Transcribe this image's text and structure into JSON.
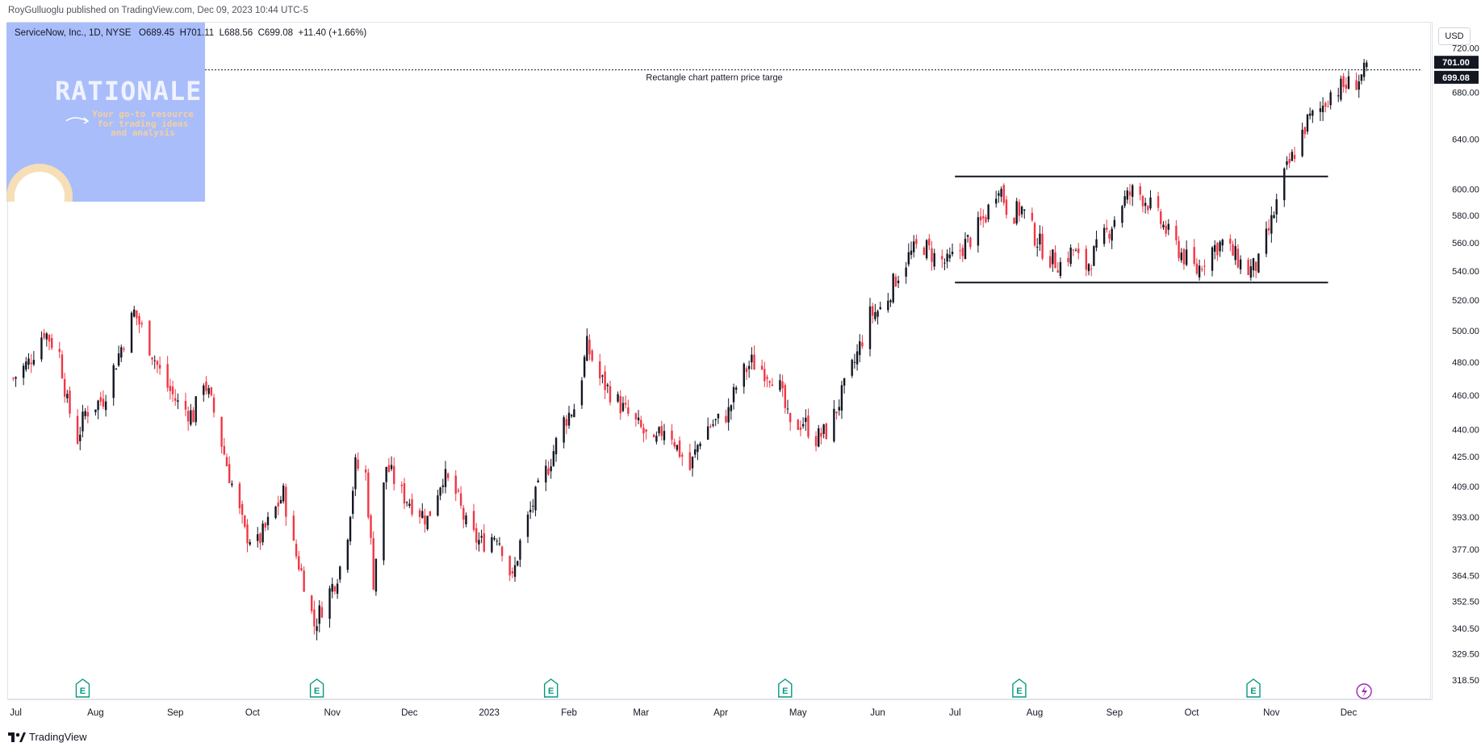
{
  "publisher": "RoyGulluoglu published on TradingView.com, Dec 09, 2023 10:44 UTC-5",
  "symbol_info": {
    "name": "ServiceNow, Inc., 1D, NYSE",
    "open": "O689.45",
    "high": "H701.11",
    "low": "L688.56",
    "close": "C699.08",
    "change": "+11.40 (+1.66%)"
  },
  "currency": "USD",
  "watermark": {
    "title": "RATIONALE",
    "subtitle": "Your go-to resource for trading ideas and analysis"
  },
  "brand": "TradingView",
  "icons": {
    "earnings": "earnings-E-icon",
    "dividend": "lightning-icon",
    "brand": "tradingview-logo-icon"
  },
  "colors": {
    "up": "#131722",
    "down": "#f23645",
    "price_label_bg": "#131722",
    "watermark_bg": "#a9bdfb"
  },
  "chart_data": {
    "type": "candlestick",
    "title": "ServiceNow, Inc., 1D, NYSE",
    "scale": "log",
    "y_range": [
      311,
      744
    ],
    "y_ticks": [
      "720.00",
      "680.00",
      "640.00",
      "600.00",
      "580.00",
      "560.00",
      "540.00",
      "520.00",
      "500.00",
      "480.00",
      "460.00",
      "440.00",
      "425.00",
      "409.00",
      "393.00",
      "377.00",
      "364.50",
      "352.50",
      "340.50",
      "329.50",
      "318.50"
    ],
    "x_ticks": [
      {
        "label": "Jul",
        "date": "2022-07-01"
      },
      {
        "label": "Aug",
        "date": "2022-08-01"
      },
      {
        "label": "Sep",
        "date": "2022-09-01"
      },
      {
        "label": "Oct",
        "date": "2022-10-01"
      },
      {
        "label": "Nov",
        "date": "2022-11-01"
      },
      {
        "label": "Dec",
        "date": "2022-12-01"
      },
      {
        "label": "2023",
        "date": "2023-01-01"
      },
      {
        "label": "Feb",
        "date": "2023-02-01"
      },
      {
        "label": "Mar",
        "date": "2023-03-01"
      },
      {
        "label": "Apr",
        "date": "2023-04-01"
      },
      {
        "label": "May",
        "date": "2023-05-01"
      },
      {
        "label": "Jun",
        "date": "2023-06-01"
      },
      {
        "label": "Jul",
        "date": "2023-07-01"
      },
      {
        "label": "Aug",
        "date": "2023-08-01"
      },
      {
        "label": "Sep",
        "date": "2023-09-01"
      },
      {
        "label": "Oct",
        "date": "2023-10-01"
      },
      {
        "label": "Nov",
        "date": "2023-11-01"
      },
      {
        "label": "Dec",
        "date": "2023-12-01"
      }
    ],
    "x_range": [
      "2022-06-28",
      "2024-01-02"
    ],
    "price_labels": [
      {
        "value": "701.00",
        "price": 701
      },
      {
        "value": "699.08",
        "price": 699.08
      }
    ],
    "target_line": {
      "price": 700,
      "label": "Rectangle chart pattern price targe",
      "date_from": "2022-06-28",
      "date_to": "2023-12-29"
    },
    "rectangle_lines": [
      {
        "price": 610,
        "date_from": "2023-07-01",
        "date_to": "2023-11-23"
      },
      {
        "price": 532,
        "date_from": "2023-07-01",
        "date_to": "2023-11-23"
      }
    ],
    "earnings_marker_dates": [
      "2022-07-27",
      "2022-10-26",
      "2023-01-25",
      "2023-04-26",
      "2023-07-26",
      "2023-10-25"
    ],
    "dividend_marker_date": "2023-12-07",
    "series": [
      {
        "date": "2022-06-30",
        "close": 470
      },
      {
        "date": "2022-07-06",
        "close": 480
      },
      {
        "date": "2022-07-12",
        "close": 500
      },
      {
        "date": "2022-07-18",
        "close": 485
      },
      {
        "date": "2022-07-21",
        "close": 455
      },
      {
        "date": "2022-07-25",
        "close": 435
      },
      {
        "date": "2022-07-28",
        "close": 450
      },
      {
        "date": "2022-08-04",
        "close": 458
      },
      {
        "date": "2022-08-10",
        "close": 485
      },
      {
        "date": "2022-08-16",
        "close": 512
      },
      {
        "date": "2022-08-22",
        "close": 490
      },
      {
        "date": "2022-08-27",
        "close": 470
      },
      {
        "date": "2022-09-02",
        "close": 455
      },
      {
        "date": "2022-09-08",
        "close": 448
      },
      {
        "date": "2022-09-12",
        "close": 470
      },
      {
        "date": "2022-09-16",
        "close": 450
      },
      {
        "date": "2022-09-22",
        "close": 415
      },
      {
        "date": "2022-09-28",
        "close": 385
      },
      {
        "date": "2022-10-03",
        "close": 380
      },
      {
        "date": "2022-10-08",
        "close": 392
      },
      {
        "date": "2022-10-13",
        "close": 405
      },
      {
        "date": "2022-10-17",
        "close": 378
      },
      {
        "date": "2022-10-21",
        "close": 362
      },
      {
        "date": "2022-10-25",
        "close": 342
      },
      {
        "date": "2022-10-28",
        "close": 350
      },
      {
        "date": "2022-11-02",
        "close": 362
      },
      {
        "date": "2022-11-06",
        "close": 375
      },
      {
        "date": "2022-11-10",
        "close": 420
      },
      {
        "date": "2022-11-14",
        "close": 415
      },
      {
        "date": "2022-11-17",
        "close": 362
      },
      {
        "date": "2022-11-22",
        "close": 420
      },
      {
        "date": "2022-11-28",
        "close": 405
      },
      {
        "date": "2022-12-02",
        "close": 400
      },
      {
        "date": "2022-12-08",
        "close": 392
      },
      {
        "date": "2022-12-14",
        "close": 415
      },
      {
        "date": "2022-12-19",
        "close": 405
      },
      {
        "date": "2022-12-24",
        "close": 385
      },
      {
        "date": "2022-12-29",
        "close": 380
      },
      {
        "date": "2023-01-04",
        "close": 385
      },
      {
        "date": "2023-01-07",
        "close": 375
      },
      {
        "date": "2023-01-10",
        "close": 362
      },
      {
        "date": "2023-01-13",
        "close": 380
      },
      {
        "date": "2023-01-18",
        "close": 400
      },
      {
        "date": "2023-01-24",
        "close": 420
      },
      {
        "date": "2023-01-30",
        "close": 445
      },
      {
        "date": "2023-02-04",
        "close": 455
      },
      {
        "date": "2023-02-08",
        "close": 490
      },
      {
        "date": "2023-02-13",
        "close": 470
      },
      {
        "date": "2023-02-18",
        "close": 460
      },
      {
        "date": "2023-02-23",
        "close": 450
      },
      {
        "date": "2023-03-01",
        "close": 440
      },
      {
        "date": "2023-03-06",
        "close": 430
      },
      {
        "date": "2023-03-11",
        "close": 445
      },
      {
        "date": "2023-03-15",
        "close": 430
      },
      {
        "date": "2023-03-20",
        "close": 418
      },
      {
        "date": "2023-03-25",
        "close": 440
      },
      {
        "date": "2023-03-31",
        "close": 445
      },
      {
        "date": "2023-04-04",
        "close": 450
      },
      {
        "date": "2023-04-08",
        "close": 470
      },
      {
        "date": "2023-04-13",
        "close": 480
      },
      {
        "date": "2023-04-18",
        "close": 475
      },
      {
        "date": "2023-04-23",
        "close": 470
      },
      {
        "date": "2023-04-28",
        "close": 440
      },
      {
        "date": "2023-05-03",
        "close": 445
      },
      {
        "date": "2023-05-08",
        "close": 435
      },
      {
        "date": "2023-05-13",
        "close": 440
      },
      {
        "date": "2023-05-18",
        "close": 460
      },
      {
        "date": "2023-05-23",
        "close": 480
      },
      {
        "date": "2023-05-29",
        "close": 510
      },
      {
        "date": "2023-06-03",
        "close": 515
      },
      {
        "date": "2023-06-08",
        "close": 535
      },
      {
        "date": "2023-06-13",
        "close": 550
      },
      {
        "date": "2023-06-18",
        "close": 560
      },
      {
        "date": "2023-06-23",
        "close": 550
      },
      {
        "date": "2023-06-28",
        "close": 545
      },
      {
        "date": "2023-07-03",
        "close": 555
      },
      {
        "date": "2023-07-08",
        "close": 565
      },
      {
        "date": "2023-07-13",
        "close": 580
      },
      {
        "date": "2023-07-18",
        "close": 605
      },
      {
        "date": "2023-07-22",
        "close": 580
      },
      {
        "date": "2023-07-27",
        "close": 585
      },
      {
        "date": "2023-08-01",
        "close": 565
      },
      {
        "date": "2023-08-06",
        "close": 550
      },
      {
        "date": "2023-08-11",
        "close": 545
      },
      {
        "date": "2023-08-16",
        "close": 555
      },
      {
        "date": "2023-08-20",
        "close": 540
      },
      {
        "date": "2023-08-25",
        "close": 555
      },
      {
        "date": "2023-08-30",
        "close": 570
      },
      {
        "date": "2023-09-04",
        "close": 590
      },
      {
        "date": "2023-09-09",
        "close": 600
      },
      {
        "date": "2023-09-14",
        "close": 590
      },
      {
        "date": "2023-09-19",
        "close": 575
      },
      {
        "date": "2023-09-24",
        "close": 560
      },
      {
        "date": "2023-09-28",
        "close": 550
      },
      {
        "date": "2023-10-03",
        "close": 540
      },
      {
        "date": "2023-10-08",
        "close": 555
      },
      {
        "date": "2023-10-13",
        "close": 560
      },
      {
        "date": "2023-10-18",
        "close": 550
      },
      {
        "date": "2023-10-23",
        "close": 540
      },
      {
        "date": "2023-10-27",
        "close": 545
      },
      {
        "date": "2023-11-01",
        "close": 575
      },
      {
        "date": "2023-11-06",
        "close": 610
      },
      {
        "date": "2023-11-10",
        "close": 630
      },
      {
        "date": "2023-11-15",
        "close": 655
      },
      {
        "date": "2023-11-20",
        "close": 665
      },
      {
        "date": "2023-11-24",
        "close": 680
      },
      {
        "date": "2023-11-29",
        "close": 685
      },
      {
        "date": "2023-12-04",
        "close": 690
      },
      {
        "date": "2023-12-08",
        "close": 699
      }
    ]
  }
}
